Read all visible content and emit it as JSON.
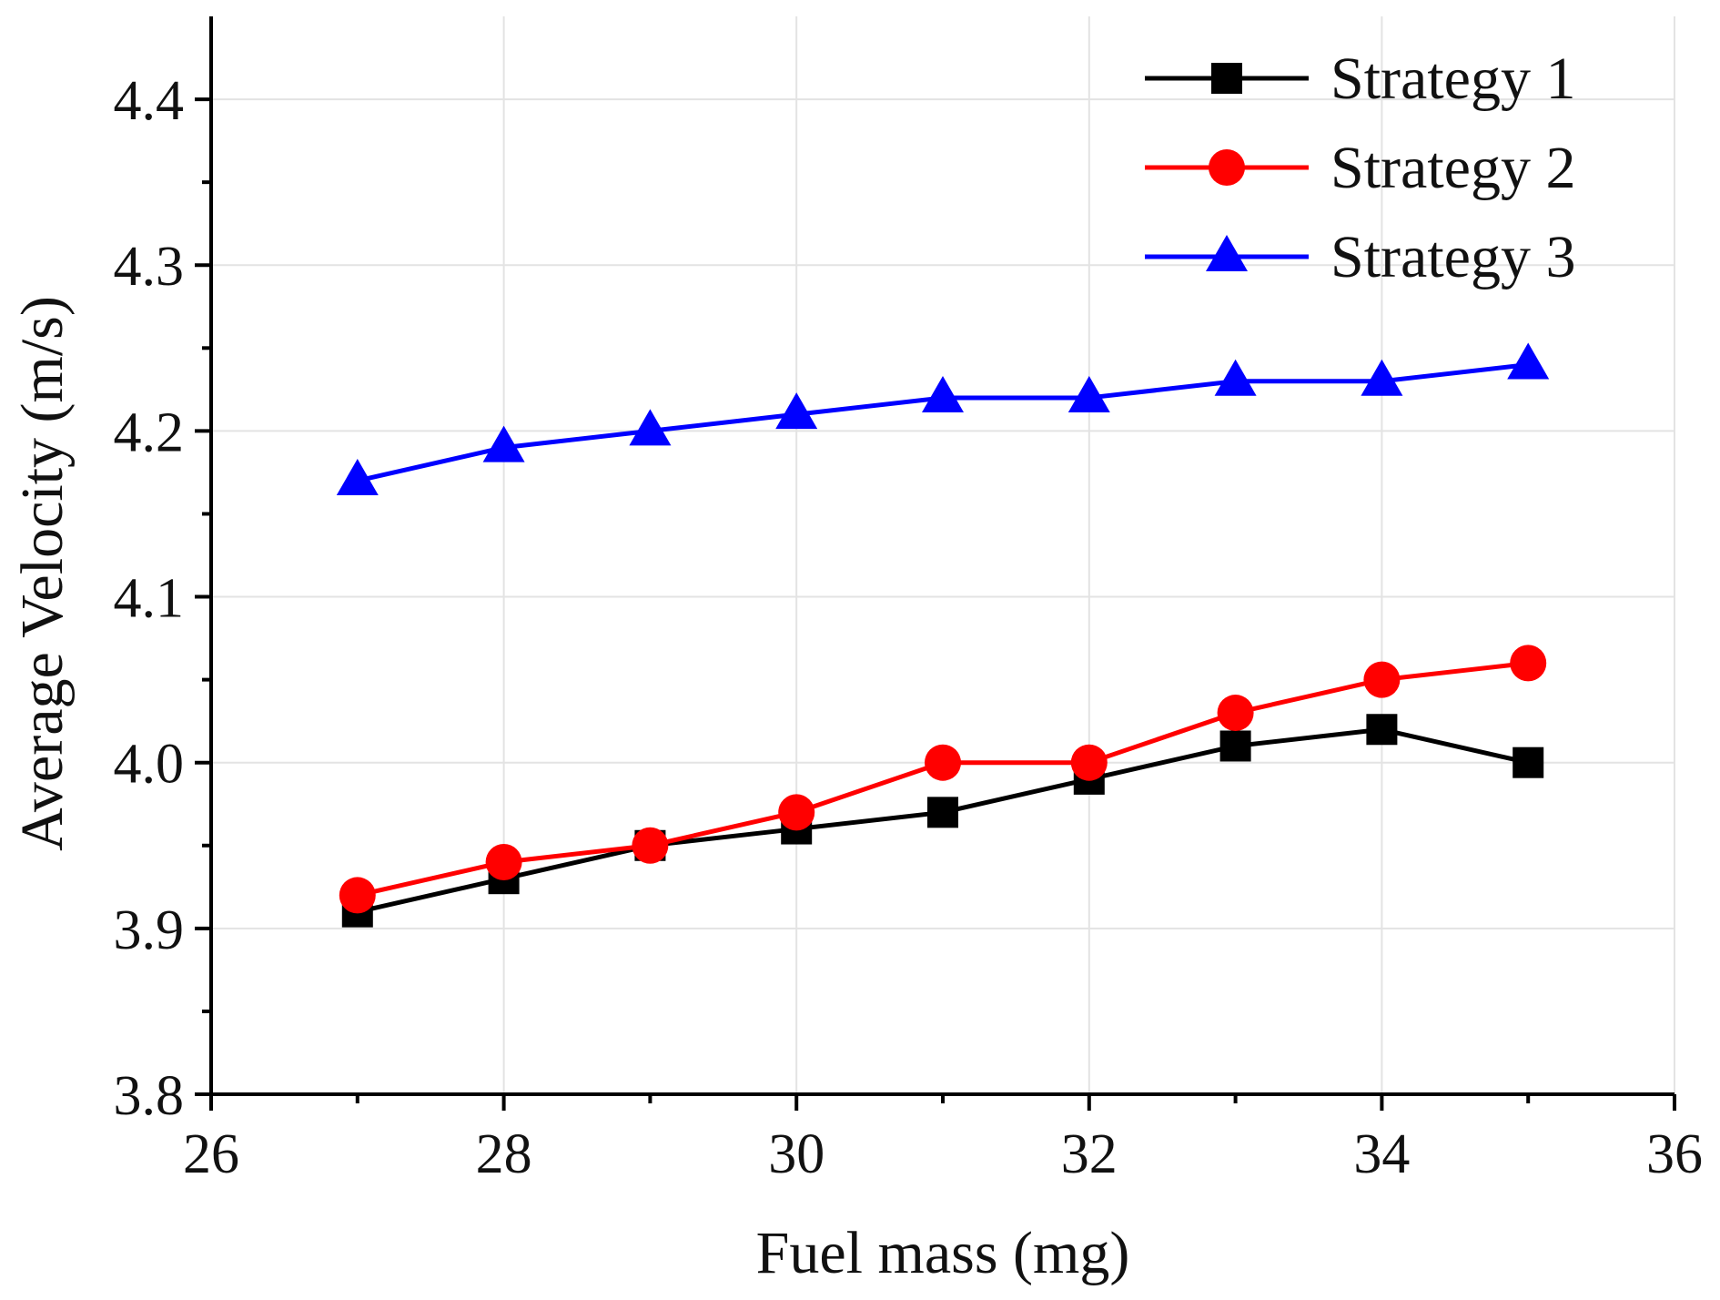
{
  "chart_data": {
    "type": "line",
    "title": "",
    "xlabel": "Fuel mass (mg)",
    "ylabel": "Average Velocity (m/s)",
    "xlim": [
      26,
      36
    ],
    "ylim": [
      3.8,
      4.45
    ],
    "xticks": [
      26,
      28,
      30,
      32,
      34,
      36
    ],
    "yticks": [
      3.8,
      3.9,
      4.0,
      4.1,
      4.2,
      4.3,
      4.4
    ],
    "xtick_labels": [
      "26",
      "28",
      "30",
      "32",
      "34",
      "36"
    ],
    "ytick_labels": [
      "3.8",
      "3.9",
      "4.0",
      "4.1",
      "4.2",
      "4.3",
      "4.4"
    ],
    "x_minor_ticks": [
      27,
      29,
      31,
      33,
      35
    ],
    "y_minor_ticks": [
      3.85,
      3.95,
      4.05,
      4.15,
      4.25,
      4.35
    ],
    "grid": true,
    "legend_position": "top-right",
    "x": [
      27,
      28,
      29,
      30,
      31,
      32,
      33,
      34,
      35
    ],
    "series": [
      {
        "name": "Strategy 1",
        "color": "#000000",
        "marker": "square",
        "values": [
          3.91,
          3.93,
          3.95,
          3.96,
          3.97,
          3.99,
          4.01,
          4.02,
          4.0
        ]
      },
      {
        "name": "Strategy 2",
        "color": "#ff0000",
        "marker": "circle",
        "values": [
          3.92,
          3.94,
          3.95,
          3.97,
          4.0,
          4.0,
          4.03,
          4.05,
          4.06
        ]
      },
      {
        "name": "Strategy 3",
        "color": "#0000ff",
        "marker": "triangle",
        "values": [
          4.17,
          4.19,
          4.2,
          4.21,
          4.22,
          4.22,
          4.23,
          4.23,
          4.24
        ]
      }
    ]
  }
}
